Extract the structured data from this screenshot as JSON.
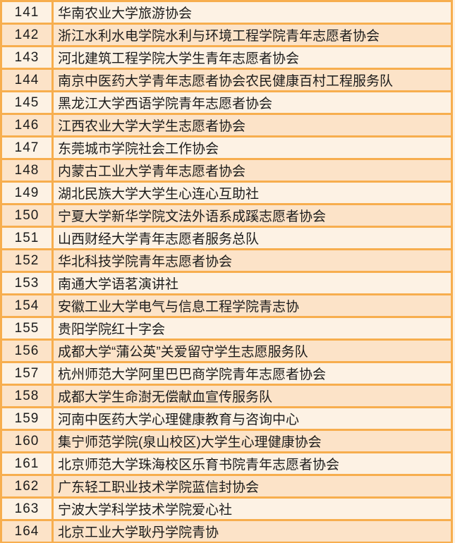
{
  "table": {
    "description": "numbered list of university volunteer associations",
    "columns": [
      {
        "key": "num",
        "name": "rank-number"
      },
      {
        "key": "name",
        "name": "organization-name"
      }
    ],
    "rows": [
      {
        "num": "141",
        "name": "华南农业大学旅游协会"
      },
      {
        "num": "142",
        "name": "浙江水利水电学院水利与环境工程学院青年志愿者协会"
      },
      {
        "num": "143",
        "name": "河北建筑工程学院大学生青年志愿者协会"
      },
      {
        "num": "144",
        "name": "南京中医药大学青年志愿者协会农民健康百村工程服务队"
      },
      {
        "num": "145",
        "name": "黑龙江大学西语学院青年志愿者协会"
      },
      {
        "num": "146",
        "name": "江西农业大学大学生志愿者协会"
      },
      {
        "num": "147",
        "name": "东莞城市学院社会工作协会"
      },
      {
        "num": "148",
        "name": "内蒙古工业大学青年志愿者协会"
      },
      {
        "num": "149",
        "name": "湖北民族大学大学生心连心互助社"
      },
      {
        "num": "150",
        "name": "宁夏大学新华学院文法外语系成蹊志愿者协会"
      },
      {
        "num": "151",
        "name": "山西财经大学青年志愿者服务总队"
      },
      {
        "num": "152",
        "name": "华北科技学院青年志愿者协会"
      },
      {
        "num": "153",
        "name": "南通大学语茗演讲社"
      },
      {
        "num": "154",
        "name": "安徽工业大学电气与信息工程学院青志协"
      },
      {
        "num": "155",
        "name": "贵阳学院红十字会"
      },
      {
        "num": "156",
        "name": "成都大学“蒲公英”关爱留守学生志愿服务队"
      },
      {
        "num": "157",
        "name": "杭州师范大学阿里巴巴商学院青年志愿者协会"
      },
      {
        "num": "158",
        "name": "成都大学生命澍无偿献血宣传服务队"
      },
      {
        "num": "159",
        "name": "河南中医药大学心理健康教育与咨询中心"
      },
      {
        "num": "160",
        "name": "集宁师范学院(泉山校区)大学生心理健康协会"
      },
      {
        "num": "161",
        "name": "北京师范大学珠海校区乐育书院青年志愿者协会"
      },
      {
        "num": "162",
        "name": "广东轻工职业技术学院蓝信封协会"
      },
      {
        "num": "163",
        "name": "宁波大学科学技术学院爱心社"
      },
      {
        "num": "164",
        "name": "北京工业大学耿丹学院青协"
      }
    ]
  },
  "colors": {
    "row_light": "#FDF2E4",
    "row_dark": "#FCE3C8",
    "border": "#F7AE4E",
    "text": "#1C1C1C"
  }
}
